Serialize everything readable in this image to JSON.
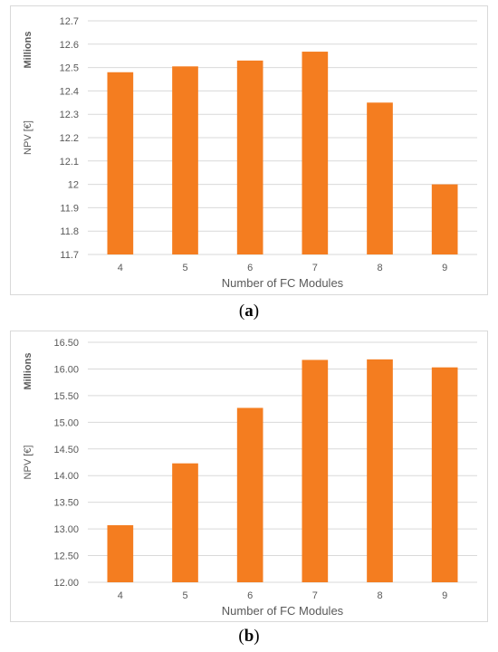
{
  "panels": [
    {
      "label_open": "(",
      "label_letter": "a",
      "label_close": ")"
    },
    {
      "label_open": "(",
      "label_letter": "b",
      "label_close": ")"
    }
  ],
  "chart_data": [
    {
      "type": "bar",
      "categories": [
        "4",
        "5",
        "6",
        "7",
        "8",
        "9"
      ],
      "values": [
        12.48,
        12.505,
        12.53,
        12.568,
        12.35,
        12.0
      ],
      "xlabel": "Number of FC Modules",
      "ylabel": "NPV [€]",
      "units_label": "Millions",
      "ylim": [
        11.7,
        12.7
      ],
      "yticks": [
        "11.7",
        "11.8",
        "11.9",
        "12",
        "12.1",
        "12.2",
        "12.3",
        "12.4",
        "12.5",
        "12.6",
        "12.7"
      ],
      "grid": true,
      "legend": "none",
      "bar_color": "#f47d20"
    },
    {
      "type": "bar",
      "categories": [
        "4",
        "5",
        "6",
        "7",
        "8",
        "9"
      ],
      "values": [
        13.07,
        14.23,
        15.27,
        16.17,
        16.18,
        16.03
      ],
      "xlabel": "Number of FC Modules",
      "ylabel": "NPV [€]",
      "units_label": "Millions",
      "ylim": [
        12.0,
        16.5
      ],
      "yticks": [
        "12.00",
        "12.50",
        "13.00",
        "13.50",
        "14.00",
        "14.50",
        "15.00",
        "15.50",
        "16.00",
        "16.50"
      ],
      "grid": true,
      "legend": "none",
      "bar_color": "#f47d20"
    }
  ]
}
